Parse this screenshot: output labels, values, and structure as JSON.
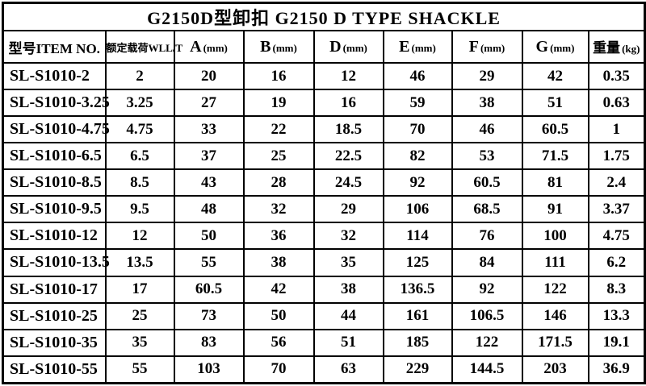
{
  "title": "G2150D型卸扣 G2150 D TYPE SHACKLE",
  "table": {
    "columns": [
      {
        "key": "item-no",
        "label": "型号ITEM NO.",
        "unit": ""
      },
      {
        "key": "wll",
        "label": "额定载荷WLL/T",
        "unit": ""
      },
      {
        "key": "a",
        "label": "A",
        "unit": "(mm)"
      },
      {
        "key": "b",
        "label": "B",
        "unit": "(mm)"
      },
      {
        "key": "d",
        "label": "D",
        "unit": "(mm)"
      },
      {
        "key": "e",
        "label": "E",
        "unit": "(mm)"
      },
      {
        "key": "f",
        "label": "F",
        "unit": "(mm)"
      },
      {
        "key": "g",
        "label": "G",
        "unit": "(mm)"
      },
      {
        "key": "weight",
        "label": "重量",
        "unit": "(kg)"
      }
    ],
    "rows": [
      [
        "SL-S1010-2",
        "2",
        "20",
        "16",
        "12",
        "46",
        "29",
        "42",
        "0.35"
      ],
      [
        "SL-S1010-3.25",
        "3.25",
        "27",
        "19",
        "16",
        "59",
        "38",
        "51",
        "0.63"
      ],
      [
        "SL-S1010-4.75",
        "4.75",
        "33",
        "22",
        "18.5",
        "70",
        "46",
        "60.5",
        "1"
      ],
      [
        "SL-S1010-6.5",
        "6.5",
        "37",
        "25",
        "22.5",
        "82",
        "53",
        "71.5",
        "1.75"
      ],
      [
        "SL-S1010-8.5",
        "8.5",
        "43",
        "28",
        "24.5",
        "92",
        "60.5",
        "81",
        "2.4"
      ],
      [
        "SL-S1010-9.5",
        "9.5",
        "48",
        "32",
        "29",
        "106",
        "68.5",
        "91",
        "3.37"
      ],
      [
        "SL-S1010-12",
        "12",
        "50",
        "36",
        "32",
        "114",
        "76",
        "100",
        "4.75"
      ],
      [
        "SL-S1010-13.5",
        "13.5",
        "55",
        "38",
        "35",
        "125",
        "84",
        "111",
        "6.2"
      ],
      [
        "SL-S1010-17",
        "17",
        "60.5",
        "42",
        "38",
        "136.5",
        "92",
        "122",
        "8.3"
      ],
      [
        "SL-S1010-25",
        "25",
        "73",
        "50",
        "44",
        "161",
        "106.5",
        "146",
        "13.3"
      ],
      [
        "SL-S1010-35",
        "35",
        "83",
        "56",
        "51",
        "185",
        "122",
        "171.5",
        "19.1"
      ],
      [
        "SL-S1010-55",
        "55",
        "103",
        "70",
        "63",
        "229",
        "144.5",
        "203",
        "36.9"
      ]
    ]
  }
}
